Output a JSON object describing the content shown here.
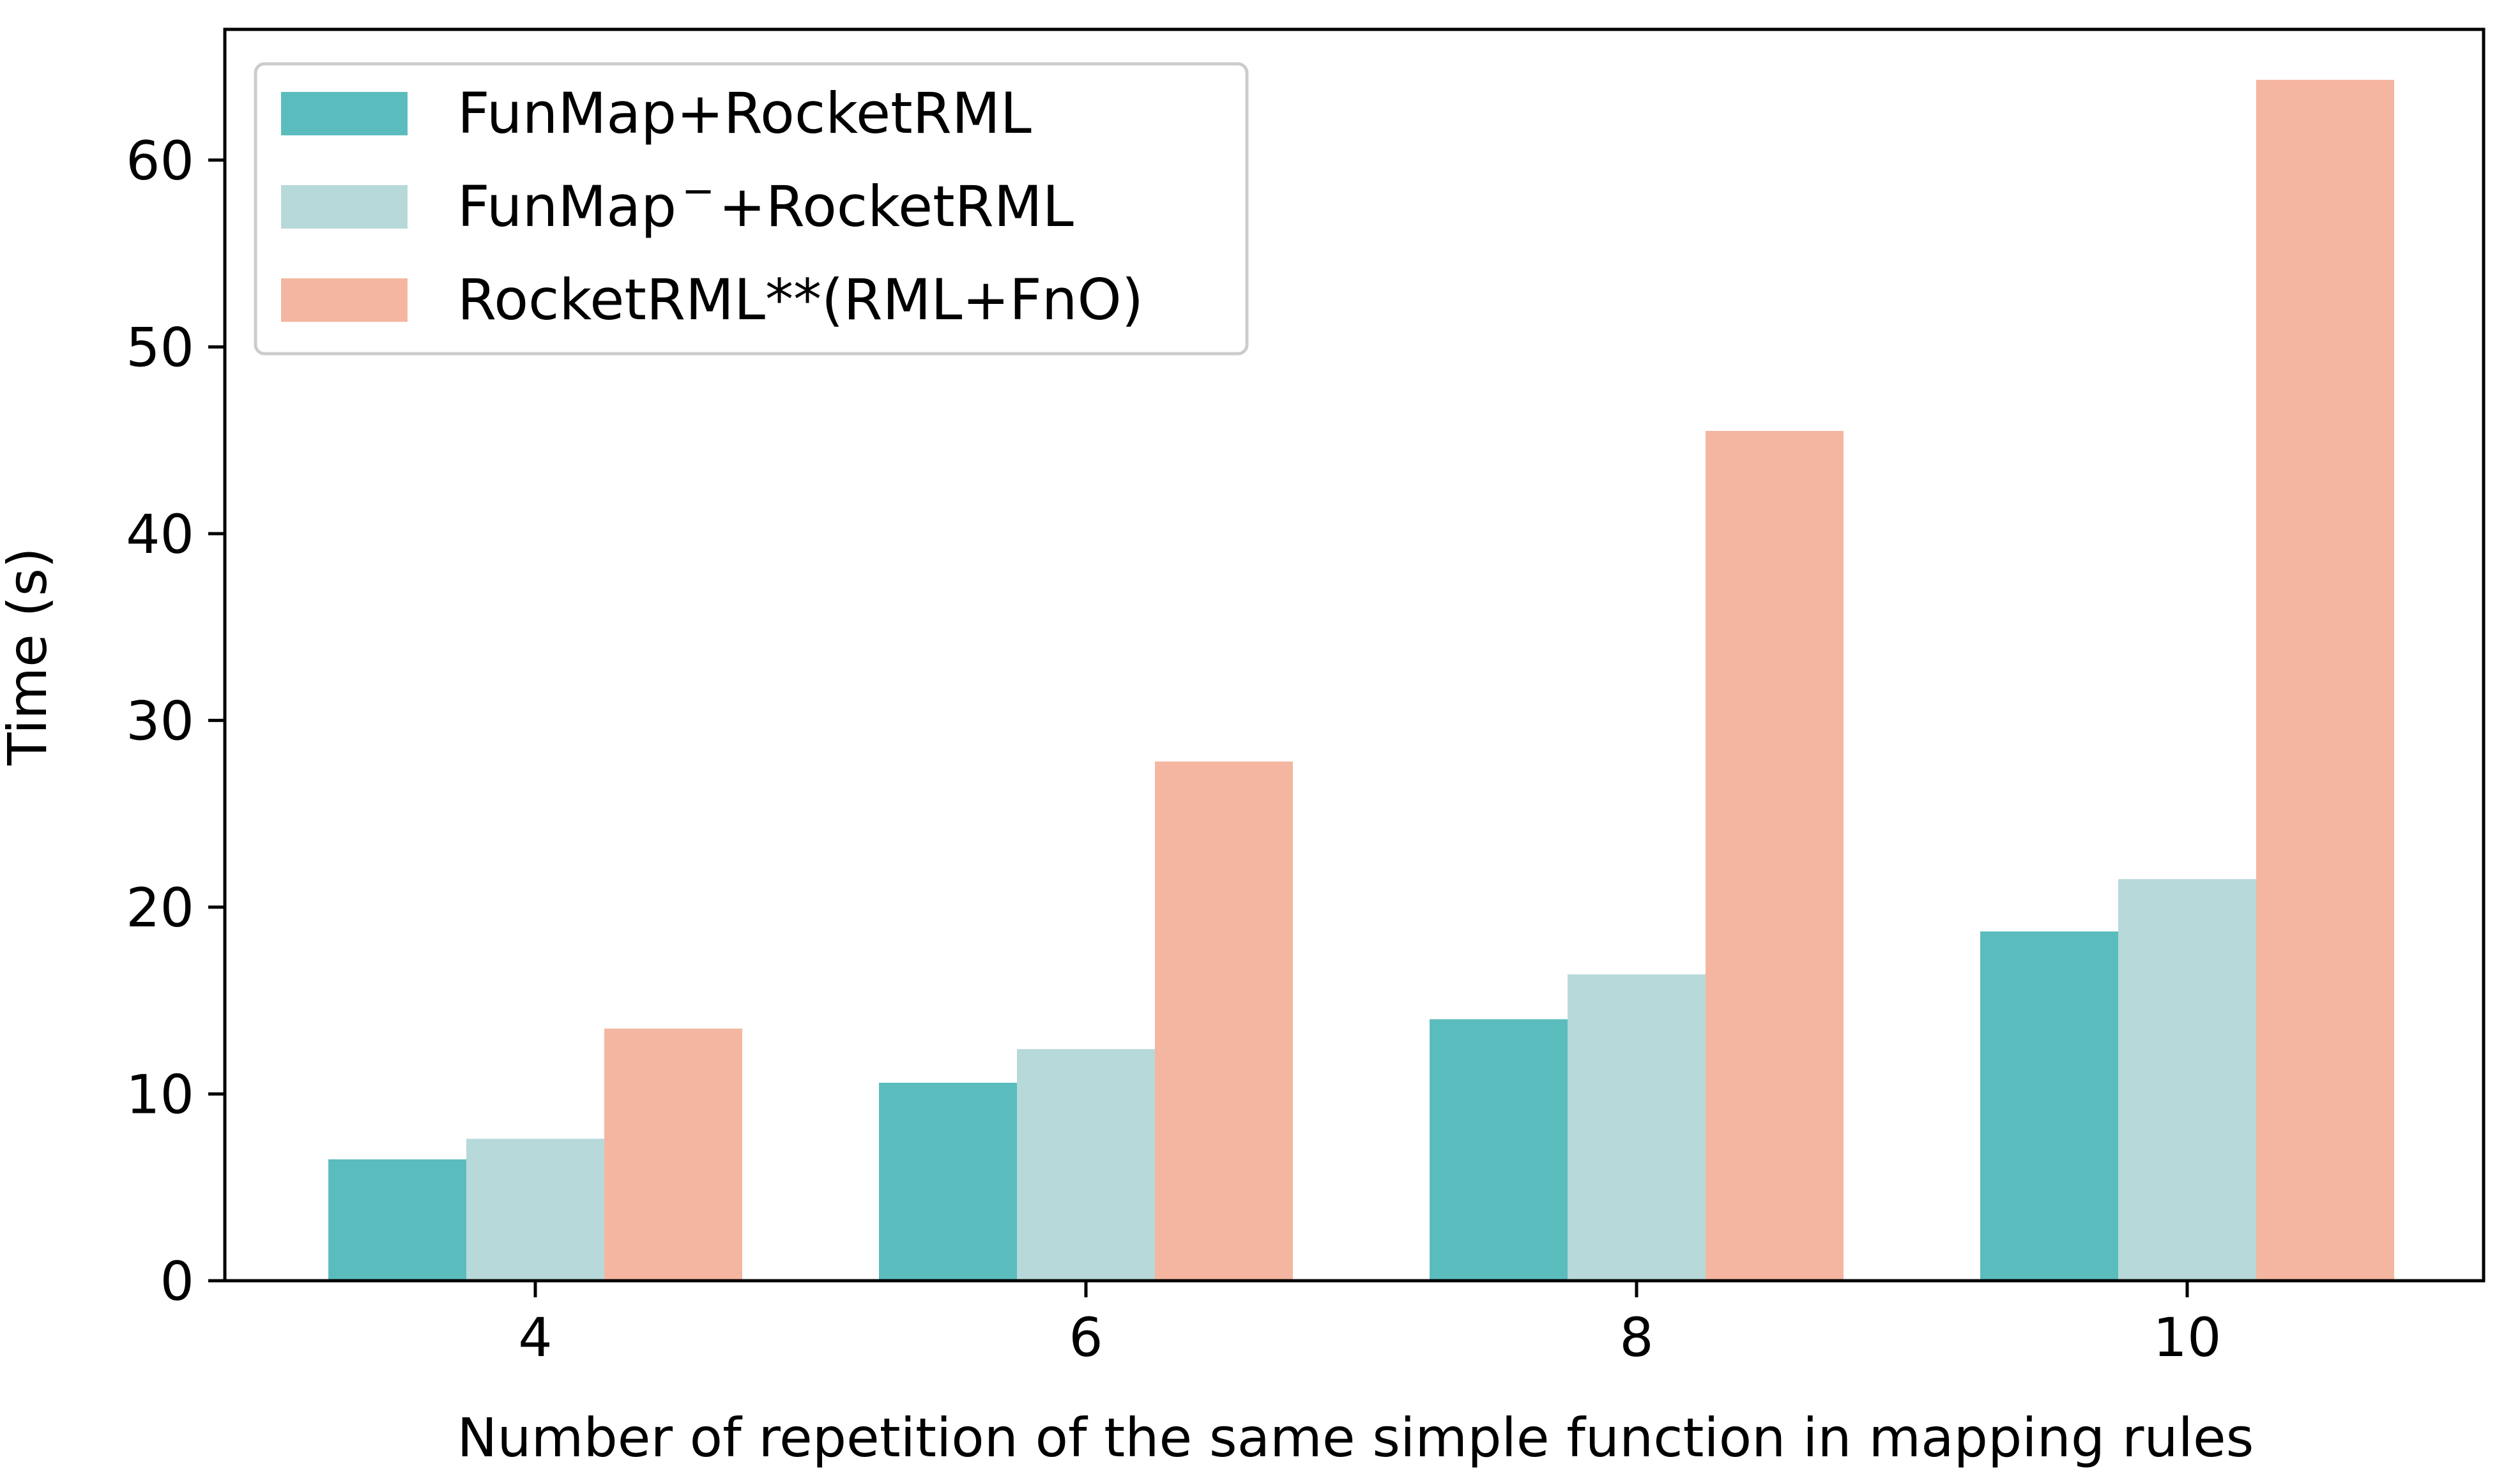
{
  "chart_data": {
    "type": "bar",
    "title": "",
    "xlabel": "Number of repetition of the same simple function in mapping rules",
    "ylabel": "Time (s)",
    "categories": [
      "4",
      "6",
      "8",
      "10"
    ],
    "ylim": [
      0,
      67
    ],
    "yticks": [
      0,
      10,
      20,
      30,
      40,
      50,
      60
    ],
    "grid": false,
    "legend_position": "top-left",
    "series": [
      {
        "name": "FunMap+RocketRML",
        "name_base": "FunMap",
        "name_sup": "",
        "name_rest": "+RocketRML",
        "color": "#5bbcbd",
        "values": [
          6.5,
          10.6,
          14.0,
          18.7
        ]
      },
      {
        "name": "FunMap⁻+RocketRML",
        "name_base": "FunMap",
        "name_sup": "−",
        "name_rest": "+RocketRML",
        "color": "#b7d9d9",
        "values": [
          7.6,
          12.4,
          16.4,
          21.5
        ]
      },
      {
        "name": "RocketRML**(RML+FnO)",
        "name_base": "RocketRML**(RML+FnO)",
        "name_sup": "",
        "name_rest": "",
        "color": "#f4b6a0",
        "values": [
          13.5,
          27.8,
          45.5,
          64.3
        ]
      }
    ]
  }
}
